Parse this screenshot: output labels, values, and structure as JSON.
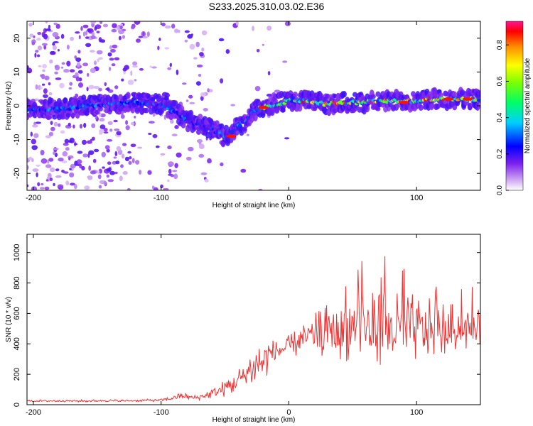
{
  "figure_title": "S233.2025.310.03.02.E36",
  "chart_data": [
    {
      "type": "heatmap",
      "title": "S233.2025.310.03.02.E36",
      "xlabel": "Height of straight line (km)",
      "ylabel": "Frequency (Hz)",
      "xlim": [
        -205,
        150
      ],
      "ylim": [
        -25,
        25
      ],
      "xticks": [
        -200,
        -100,
        0,
        100
      ],
      "yticks": [
        -20,
        -10,
        0,
        10,
        20
      ],
      "colorbar": {
        "label": "Normalized spectral amplitude",
        "range": [
          0,
          0.93
        ],
        "ticks": [
          0.0,
          0.2,
          0.4,
          0.6,
          0.8
        ]
      },
      "ridge_center": {
        "x": [
          -205,
          -180,
          -160,
          -140,
          -120,
          -100,
          -92,
          -85,
          -78,
          -70,
          -62,
          -55,
          -50,
          -45,
          -40,
          -35,
          -30,
          -25,
          -20,
          -15,
          -10,
          -5,
          0,
          10,
          20,
          30,
          40,
          50,
          60,
          70,
          80,
          90,
          100,
          110,
          120,
          130,
          140,
          150
        ],
        "y": [
          -1,
          -1,
          0,
          0.5,
          1,
          0.5,
          -1,
          -3,
          -4.5,
          -5.5,
          -6.5,
          -8,
          -9,
          -8,
          -6,
          -5,
          -3,
          -1,
          -0.5,
          0,
          0.5,
          1,
          1.5,
          1.5,
          1,
          0.5,
          1,
          1,
          1,
          1.5,
          1.5,
          1.5,
          1.5,
          2,
          2,
          2,
          2,
          2
        ]
      }
    },
    {
      "type": "line",
      "xlabel": "Height of straight line (km)",
      "ylabel": "SNR (10 * v/v)",
      "xlim": [
        -205,
        150
      ],
      "ylim": [
        0,
        1120
      ],
      "xticks": [
        -200,
        -100,
        0,
        100
      ],
      "yticks": [
        0,
        200,
        400,
        600,
        800,
        1000
      ],
      "series": [
        {
          "name": "SNR",
          "color": "#ee3333",
          "x": [
            -205,
            -190,
            -175,
            -160,
            -145,
            -130,
            -115,
            -100,
            -92,
            -85,
            -80,
            -75,
            -70,
            -65,
            -60,
            -55,
            -50,
            -45,
            -40,
            -35,
            -30,
            -25,
            -20,
            -15,
            -10,
            -5,
            0,
            5,
            10,
            15,
            20,
            25,
            30,
            35,
            40,
            45,
            50,
            55,
            60,
            65,
            70,
            75,
            80,
            85,
            90,
            95,
            100,
            105,
            110,
            115,
            120,
            125,
            130,
            135,
            140,
            145,
            150
          ],
          "y": [
            25,
            25,
            26,
            24,
            27,
            25,
            28,
            30,
            40,
            60,
            55,
            45,
            50,
            60,
            75,
            90,
            110,
            130,
            160,
            190,
            230,
            260,
            290,
            330,
            350,
            365,
            380,
            400,
            420,
            440,
            460,
            470,
            480,
            490,
            500,
            505,
            505,
            505,
            500,
            500,
            500,
            505,
            495,
            500,
            500,
            500,
            500,
            505,
            500,
            505,
            500,
            500,
            500,
            500,
            500,
            500,
            500
          ],
          "spread": [
            8,
            8,
            8,
            8,
            8,
            8,
            8,
            10,
            15,
            25,
            20,
            15,
            20,
            25,
            35,
            45,
            60,
            70,
            80,
            95,
            120,
            150,
            160,
            110,
            70,
            75,
            80,
            90,
            100,
            120,
            140,
            160,
            180,
            200,
            210,
            220,
            230,
            240,
            240,
            240,
            240,
            240,
            240,
            240,
            240,
            240,
            220,
            210,
            200,
            190,
            180,
            170,
            160,
            150,
            140,
            130,
            130
          ]
        }
      ]
    }
  ]
}
